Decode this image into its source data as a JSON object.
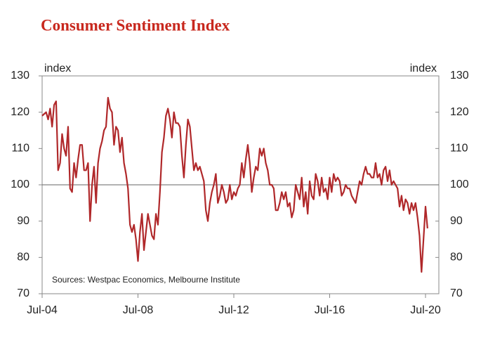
{
  "chart_data": {
    "type": "line",
    "title": "Consumer Sentiment Index",
    "ylabel": "index",
    "y2label": "index",
    "annotation": "Sources: Westpac Economics, Melbourne Institute",
    "color": "#b0282a",
    "categories": [
      "Jul-04",
      null,
      null,
      null,
      null,
      null,
      null,
      null,
      null,
      null,
      null,
      null,
      null,
      null,
      null,
      null,
      null,
      null,
      null,
      null,
      null,
      null,
      null,
      null,
      null,
      null,
      null,
      null,
      null,
      null,
      null,
      null,
      null,
      null,
      null,
      null,
      null,
      null,
      null,
      null,
      null,
      null,
      null,
      null,
      null,
      null,
      null,
      null,
      "Jul-08",
      null,
      null,
      null,
      null,
      null,
      null,
      null,
      null,
      null,
      null,
      null,
      null,
      null,
      null,
      null,
      null,
      null,
      null,
      null,
      null,
      null,
      null,
      null,
      null,
      null,
      null,
      null,
      null,
      null,
      null,
      null,
      null,
      null,
      null,
      null,
      null,
      null,
      null,
      null,
      null,
      null,
      null,
      null,
      null,
      null,
      null,
      null,
      "Jul-12",
      null,
      null,
      null,
      null,
      null,
      null,
      null,
      null,
      null,
      null,
      null,
      null,
      null,
      null,
      null,
      null,
      null,
      null,
      null,
      null,
      null,
      null,
      null,
      null,
      null,
      null,
      null,
      null,
      null,
      null,
      null,
      null,
      null,
      null,
      null,
      null,
      null,
      null,
      null,
      null,
      null,
      null,
      null,
      null,
      null,
      null,
      null,
      "Jul-16",
      null,
      null,
      null,
      null,
      null,
      null,
      null,
      null,
      null,
      null,
      null,
      null,
      null,
      null,
      null,
      null,
      null,
      null,
      null,
      null,
      null,
      null,
      null,
      null,
      null,
      null,
      null,
      null,
      null,
      null,
      null,
      null,
      null,
      null,
      null,
      null,
      null,
      null,
      null,
      null,
      null,
      null,
      null,
      null,
      null,
      null,
      null,
      "Jul-20",
      null
    ],
    "values": [
      119,
      119.5,
      120,
      118,
      121,
      116,
      122,
      123,
      104,
      106,
      114,
      110,
      108,
      116,
      99,
      98,
      106,
      102,
      107,
      111,
      111,
      104,
      104,
      106,
      90,
      100,
      105,
      95,
      106,
      110,
      112,
      115,
      116,
      124,
      121,
      120,
      111,
      116,
      115,
      109,
      113,
      106,
      103,
      99,
      89,
      87,
      89,
      85,
      79,
      87,
      92,
      82,
      87,
      92,
      89,
      86,
      85,
      92,
      89,
      98,
      109,
      113,
      119,
      121,
      118,
      113,
      120,
      117,
      117,
      116,
      108,
      102,
      111,
      118,
      116,
      110,
      104,
      106,
      104,
      105,
      103,
      101,
      93,
      90,
      95,
      98,
      100,
      103,
      95,
      97,
      100,
      98,
      95,
      96,
      100,
      96,
      98,
      97,
      99,
      100,
      106,
      102,
      107,
      111,
      106,
      98,
      102,
      105,
      104,
      110,
      108,
      110,
      106,
      104,
      100,
      100,
      99,
      93,
      93,
      95,
      98,
      96,
      98,
      94,
      95,
      91,
      93,
      100,
      98,
      96,
      102,
      94,
      98,
      92,
      101,
      97,
      96,
      103,
      101,
      97,
      102,
      98,
      99,
      96,
      102,
      98,
      103,
      101,
      102,
      101,
      97,
      98,
      100,
      99,
      99,
      97,
      96,
      95,
      98,
      101,
      100,
      103,
      105,
      103,
      103,
      102,
      102,
      106,
      102,
      103,
      100,
      104,
      105,
      101,
      104,
      100,
      101,
      100,
      99,
      94,
      97,
      93,
      96,
      95,
      92,
      95,
      93,
      95,
      91,
      86,
      76,
      85,
      94,
      88
    ],
    "ylim": [
      70,
      130
    ],
    "yticks": [
      70,
      80,
      90,
      100,
      110,
      120,
      130
    ],
    "y2lim": [
      70,
      130
    ],
    "y2ticks": [
      70,
      80,
      90,
      100,
      110,
      120,
      130
    ],
    "hline": 100
  }
}
